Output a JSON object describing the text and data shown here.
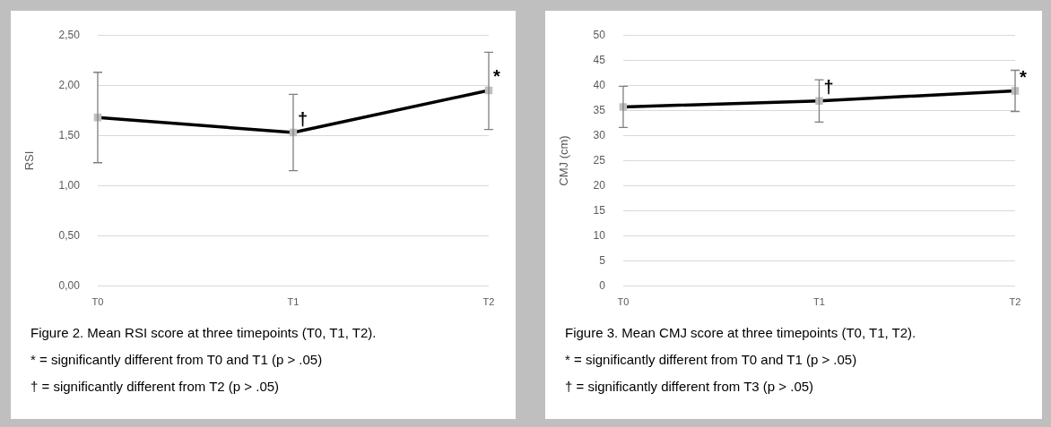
{
  "chart_data": [
    {
      "type": "line",
      "title": "Figure 2. Mean RSI score at three timepoints (T0, T1, T2).",
      "ylabel": "RSI",
      "categories": [
        "T0",
        "T1",
        "T2"
      ],
      "series": [
        {
          "color": "#000000",
          "values": [
            1.68,
            1.53,
            1.95
          ],
          "errors": [
            [
              1.23,
              2.13
            ],
            [
              1.15,
              1.91
            ],
            [
              1.56,
              2.33
            ]
          ]
        }
      ],
      "ylim": [
        0,
        2.5
      ],
      "yticks": [
        {
          "value": 0,
          "label": "0,00"
        },
        {
          "value": 0.5,
          "label": "0,50"
        },
        {
          "value": 1,
          "label": "1,00"
        },
        {
          "value": 1.5,
          "label": "1,50"
        },
        {
          "value": 2,
          "label": "2,00"
        },
        {
          "value": 2.5,
          "label": "2,50"
        }
      ],
      "grid": "y",
      "marker": "square",
      "line_style": "solid",
      "annotations": [
        {
          "text": "†",
          "x": "T1",
          "y": 1.53
        },
        {
          "text": "*",
          "x": "T2",
          "y": 1.95
        },
        "* = significantly different from T0 and T1 (p > .05)",
        "† = significantly different from T2 (p > .05)"
      ]
    },
    {
      "type": "line",
      "title": "Figure 3. Mean CMJ score at three timepoints (T0, T1, T2).",
      "ylabel": "CMJ (cm)",
      "categories": [
        "T0",
        "T1",
        "T2"
      ],
      "series": [
        {
          "color": "#000000",
          "values": [
            35.7,
            36.9,
            38.9
          ],
          "errors": [
            [
              31.6,
              39.8
            ],
            [
              32.7,
              41.1
            ],
            [
              34.8,
              43.0
            ]
          ]
        }
      ],
      "ylim": [
        0,
        50
      ],
      "yticks": [
        0,
        5,
        10,
        15,
        20,
        25,
        30,
        35,
        40,
        45,
        50
      ],
      "grid": "y",
      "marker": "square",
      "line_style": "solid",
      "annotations": [
        {
          "text": "†",
          "x": "T1",
          "y": 36.9
        },
        {
          "text": "*",
          "x": "T2",
          "y": 38.9
        },
        "* = significantly different from T0 and T1 (p > .05)",
        "† = significantly different from T3 (p > .05)"
      ]
    }
  ]
}
